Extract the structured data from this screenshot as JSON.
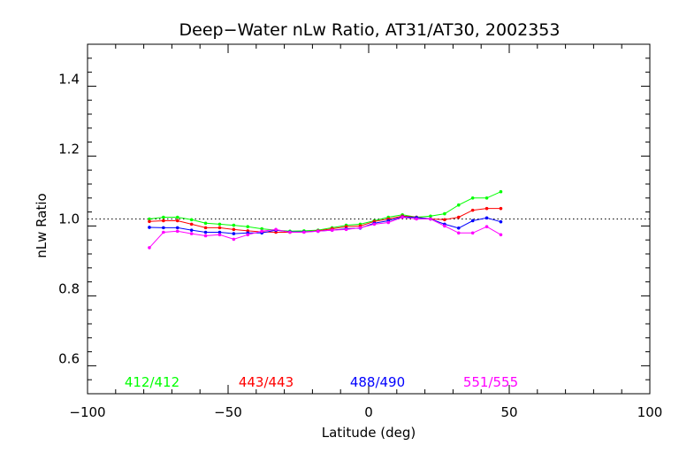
{
  "chart_data": {
    "type": "line",
    "title": "Deep−Water nLw Ratio, AT31/AT30, 2002353",
    "xlabel": "Latitude (deg)",
    "ylabel": "nLw Ratio",
    "xlim": [
      -100,
      100
    ],
    "ylim": [
      0.5,
      1.5
    ],
    "x_ticks": [
      -100,
      -50,
      0,
      50,
      100
    ],
    "x_tick_labels": [
      "−100",
      "−50",
      "0",
      "50",
      "100"
    ],
    "y_ticks": [
      0.6,
      0.8,
      1.0,
      1.2,
      1.4
    ],
    "y_tick_labels": [
      "0.6",
      "0.8",
      "1.0",
      "1.2",
      "1.4"
    ],
    "reference_line": {
      "y": 1.0,
      "style": "dotted"
    },
    "grid": false,
    "legend": "bottom, inside plot",
    "x": [
      -78,
      -73,
      -68,
      -63,
      -58,
      -53,
      -48,
      -43,
      -38,
      -33,
      -28,
      -23,
      -18,
      -13,
      -8,
      -3,
      2,
      7,
      12,
      17,
      22,
      27,
      32,
      37,
      42,
      47
    ],
    "series": [
      {
        "name": "412/412",
        "color": "#00ff00",
        "values": [
          1.0,
          1.005,
          1.005,
          0.998,
          0.988,
          0.985,
          0.982,
          0.978,
          0.972,
          0.968,
          0.965,
          0.966,
          0.968,
          0.975,
          0.982,
          0.985,
          0.995,
          1.005,
          1.012,
          1.005,
          1.008,
          1.015,
          1.04,
          1.06,
          1.06,
          1.078
        ]
      },
      {
        "name": "443/443",
        "color": "#ff0000",
        "values": [
          0.993,
          0.995,
          0.995,
          0.985,
          0.975,
          0.975,
          0.97,
          0.966,
          0.963,
          0.962,
          0.962,
          0.963,
          0.966,
          0.972,
          0.978,
          0.98,
          0.993,
          1.0,
          1.008,
          1.005,
          1.0,
          0.998,
          1.005,
          1.025,
          1.03,
          1.03
        ]
      },
      {
        "name": "488/490",
        "color": "#0000ff",
        "values": [
          0.976,
          0.975,
          0.975,
          0.968,
          0.962,
          0.962,
          0.958,
          0.96,
          0.96,
          0.968,
          0.963,
          0.963,
          0.965,
          0.968,
          0.972,
          0.974,
          0.988,
          0.995,
          1.006,
          1.004,
          1.0,
          0.985,
          0.974,
          0.995,
          1.003,
          0.992
        ]
      },
      {
        "name": "551/555",
        "color": "#ff00ff",
        "values": [
          0.918,
          0.962,
          0.965,
          0.958,
          0.952,
          0.955,
          0.942,
          0.955,
          0.965,
          0.97,
          0.962,
          0.962,
          0.965,
          0.968,
          0.97,
          0.975,
          0.985,
          0.99,
          1.005,
          1.0,
          1.0,
          0.98,
          0.96,
          0.96,
          0.978,
          0.955
        ]
      }
    ]
  }
}
